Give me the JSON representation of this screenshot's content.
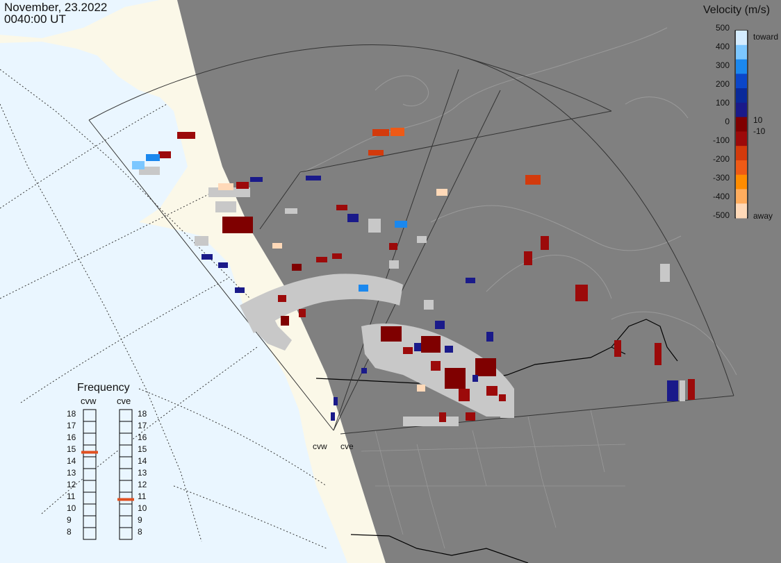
{
  "header": {
    "date": "November, 23.2022",
    "time": "0040:00 UT"
  },
  "legend": {
    "title": "Velocity (m/s)",
    "ticks": [
      "500",
      "400",
      "300",
      "200",
      "100",
      "0",
      "-100",
      "-200",
      "-300",
      "-400",
      "-500"
    ],
    "toward_label": "toward",
    "away_label": "away",
    "pos_threshold": "10",
    "neg_threshold": "-10",
    "colors": [
      "#ffd9b8",
      "#ffad5e",
      "#ff8c00",
      "#ee5a16",
      "#d33a0c",
      "#9c0a0a",
      "#7f0000",
      "#1a1a8a",
      "#0a2a9a",
      "#0b46c9",
      "#1b88ee",
      "#7cc7ff",
      "#d4ecff"
    ]
  },
  "frequency": {
    "title": "Frequency",
    "radars": [
      {
        "name": "cvw",
        "value": 15,
        "color": "#e05020"
      },
      {
        "name": "cve",
        "value": 11,
        "color": "#e05020"
      }
    ],
    "ticks": [
      "18",
      "17",
      "16",
      "15",
      "14",
      "13",
      "12",
      "11",
      "10",
      "9",
      "8"
    ]
  },
  "sites": [
    "cvw",
    "cve"
  ],
  "map_colors": {
    "ocean": "#eaf6ff",
    "land_lit": "#fbf8e8",
    "land_night": "#808080",
    "ground_scatter": "#c8c8c8"
  }
}
